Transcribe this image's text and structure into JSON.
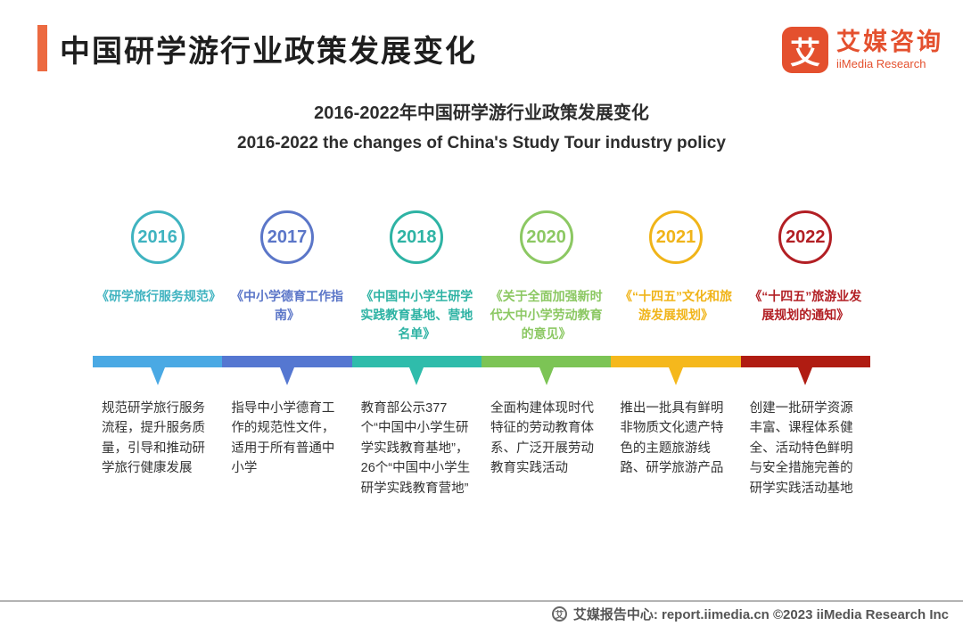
{
  "header": {
    "title": "中国研学游行业政策发展变化",
    "logo": {
      "mark": "艾",
      "name_cn": "艾媒咨询",
      "name_en": "iiMedia Research",
      "brand_color": "#e4502e"
    }
  },
  "figure": {
    "title_cn": "2016-2022年中国研学游行业政策发展变化",
    "title_en": "2016-2022 the changes of China's Study Tour industry policy"
  },
  "timeline": {
    "items": [
      {
        "year": "2016",
        "color": "#3fb3c0",
        "bar_color": "#4aa9e4",
        "policy": "《研学旅行服务规范》",
        "description": "规范研学旅行服务流程，提升服务质量，引导和推动研学旅行健康发展"
      },
      {
        "year": "2017",
        "color": "#5b76c8",
        "bar_color": "#5577d1",
        "policy": "《中小学德育工作指南》",
        "description": "指导中小学德育工作的规范性文件，适用于所有普通中小学"
      },
      {
        "year": "2018",
        "color": "#2eb3a4",
        "bar_color": "#2fbcab",
        "policy": "《中国中小学生研学实践教育基地、营地名单》",
        "description": "教育部公示377个“中国中小学生研学实践教育基地”，26个“中国中小学生研学实践教育营地”"
      },
      {
        "year": "2020",
        "color": "#8cc863",
        "bar_color": "#7cc455",
        "policy": "《关于全面加强新时代大中小学劳动教育的意见》",
        "description": "全面构建体现时代特征的劳动教育体系、广泛开展劳动教育实践活动"
      },
      {
        "year": "2021",
        "color": "#f0b419",
        "bar_color": "#f5b81c",
        "policy": "《“十四五”文化和旅游发展规划》",
        "description": "推出一批具有鲜明非物质文化遗产特色的主题旅游线路、研学旅游产品"
      },
      {
        "year": "2022",
        "color": "#b21f24",
        "bar_color": "#b01c12",
        "policy": "《“十四五”旅游业发展规划的通知》",
        "description": "创建一批研学资源丰富、课程体系健全、活动特色鲜明与安全措施完善的研学实践活动基地"
      }
    ]
  },
  "footer": {
    "icon_char": "艾",
    "text": "艾媒报告中心: report.iimedia.cn ©2023 iiMedia Research Inc"
  }
}
